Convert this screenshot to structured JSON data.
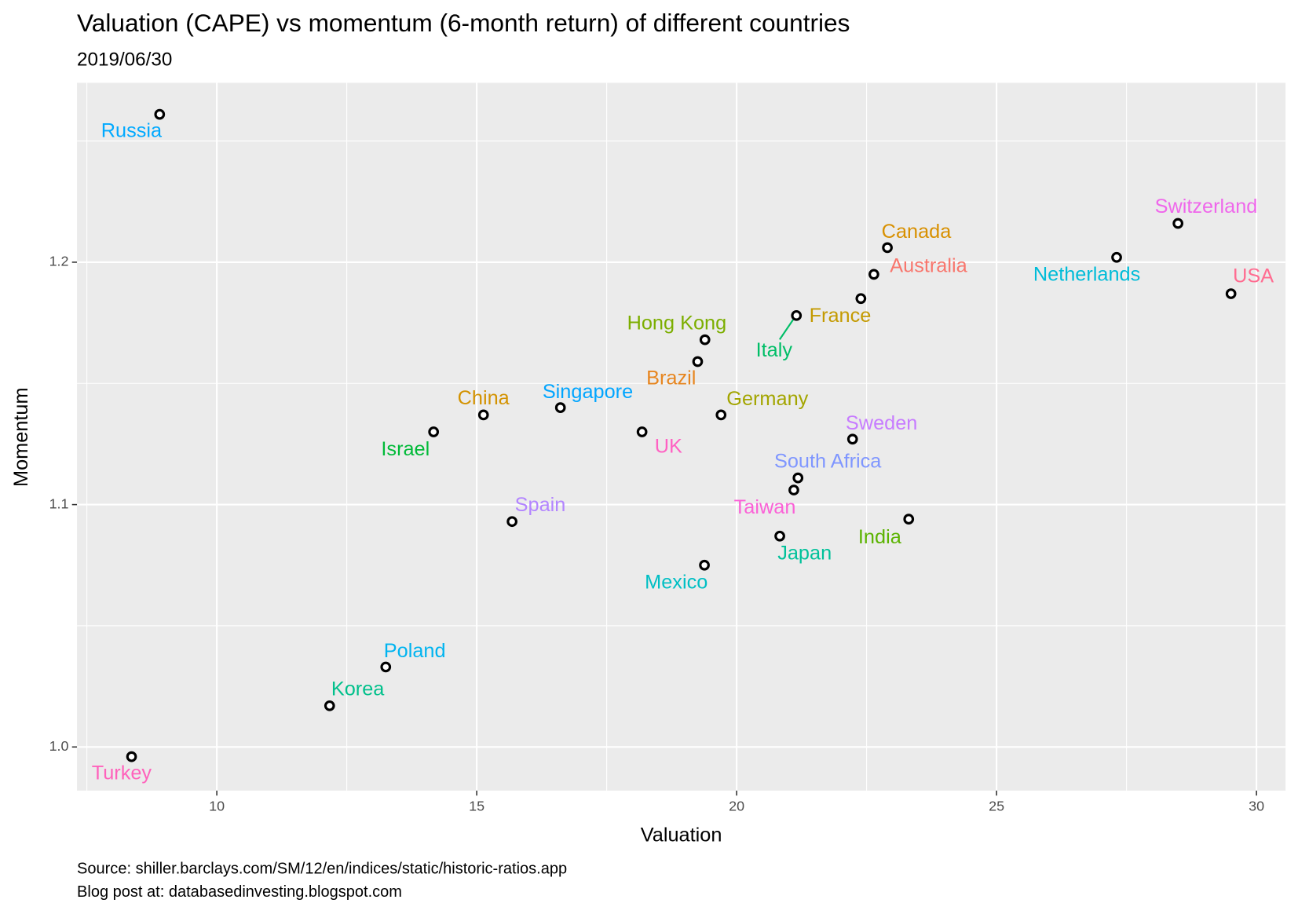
{
  "chart_data": {
    "type": "scatter",
    "title": "Valuation (CAPE) vs momentum (6-month return) of different countries",
    "subtitle": "2019/06/30",
    "x_label": "Valuation",
    "y_label": "Momentum",
    "caption": [
      "Source: shiller.barclays.com/SM/12/en/indices/static/historic-ratios.app",
      "Blog post at: databasedinvesting.blogspot.com"
    ],
    "labels": [
      "Russia",
      "Switzerland",
      "Canada",
      "Netherlands",
      "Australia",
      "France",
      "Italy",
      "USA",
      "Hong Kong",
      "Brazil",
      "Germany",
      "Singapore",
      "China",
      "Israel",
      "UK",
      "Sweden",
      "South Africa",
      "Taiwan",
      "Spain",
      "India",
      "Japan",
      "Mexico",
      "Poland",
      "Korea",
      "Turkey"
    ],
    "label_colors": [
      "#00A9FF",
      "#EF67EB",
      "#D89000",
      "#00BCD8",
      "#F8766D",
      "#C49A00",
      "#00BE67",
      "#FF6C91",
      "#7CAE00",
      "#E7851E",
      "#A3A500",
      "#00A5FF",
      "#D39200",
      "#00BA38",
      "#FF61C3",
      "#C77CFF",
      "#7F96FF",
      "#FB61D7",
      "#B385FF",
      "#5BB300",
      "#00C19A",
      "#00BFC4",
      "#00B4F0",
      "#00C08B",
      "#FF62BC"
    ],
    "x": [
      8.9,
      28.49,
      22.9,
      27.31,
      22.64,
      22.39,
      21.15,
      29.51,
      19.39,
      19.25,
      19.7,
      16.61,
      15.13,
      14.17,
      18.18,
      22.23,
      21.18,
      21.1,
      15.68,
      23.31,
      20.83,
      19.38,
      13.25,
      12.17,
      8.36
    ],
    "y": [
      1.261,
      1.216,
      1.206,
      1.202,
      1.195,
      1.185,
      1.178,
      1.187,
      1.168,
      1.159,
      1.137,
      1.14,
      1.137,
      1.13,
      1.13,
      1.127,
      1.111,
      1.106,
      1.093,
      1.094,
      1.087,
      1.075,
      1.033,
      1.017,
      0.996
    ],
    "xlim": [
      7.31,
      30.56
    ],
    "ylim": [
      0.982,
      1.274
    ],
    "xticks": [
      10,
      15,
      20,
      25,
      30
    ],
    "yticks": [
      {
        "value": 1,
        "label": "1.0"
      },
      1.1,
      1.2
    ],
    "minor_xticks": [
      7.5,
      12.5,
      17.5,
      22.5,
      27.5
    ],
    "minor_yticks": [
      1.05,
      1.15,
      1.25
    ],
    "grid": true
  }
}
